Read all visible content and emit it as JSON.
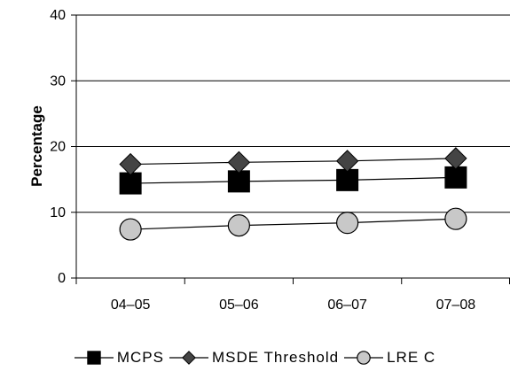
{
  "chart_data": {
    "type": "line",
    "title": "",
    "xlabel": "",
    "ylabel": "Percentage",
    "categories": [
      "04–05",
      "05–06",
      "06–07",
      "07–08"
    ],
    "ylim": [
      0,
      40
    ],
    "yticks": [
      "0",
      "10",
      "20",
      "30",
      "40"
    ],
    "grid": "horizontal",
    "legend_position": "bottom",
    "series": [
      {
        "name": "MCPS",
        "values": [
          14.4,
          14.7,
          14.9,
          15.3
        ],
        "marker": "square",
        "color": "#000000"
      },
      {
        "name": "MSDE Threshold",
        "values": [
          17.3,
          17.6,
          17.8,
          18.2
        ],
        "marker": "diamond",
        "color": "#444444"
      },
      {
        "name": "LRE C",
        "values": [
          7.4,
          8.0,
          8.4,
          9.0
        ],
        "marker": "circle",
        "color": "#c8c8c8"
      }
    ]
  }
}
